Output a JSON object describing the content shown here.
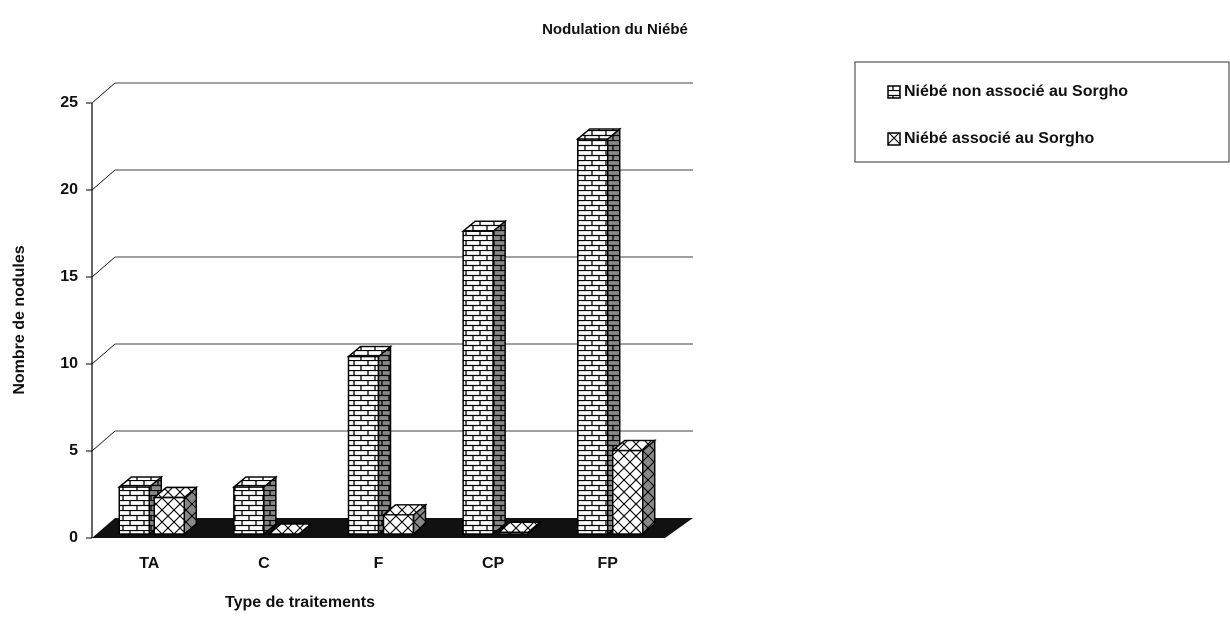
{
  "chart_data": {
    "type": "bar3d",
    "title": "Nodulation du Niébé",
    "xlabel": "Type de traitements",
    "ylabel": "Nombre de nodules",
    "categories": [
      "TA",
      "C",
      "F",
      "CP",
      "FP"
    ],
    "series": [
      {
        "name": "Niébé non associé au Sorgho",
        "color": "#ffffff",
        "values": [
          2.7,
          2.7,
          10.2,
          17.4,
          22.7
        ]
      },
      {
        "name": "Niébé associé au Sorgho",
        "color": "#ffffff",
        "values": [
          2.1,
          0,
          1.1,
          0.1,
          4.8
        ]
      }
    ],
    "ylim": [
      0,
      25
    ],
    "yticks": [
      0,
      5,
      10,
      15,
      20,
      25
    ],
    "grid": true,
    "legend": "upper right"
  }
}
